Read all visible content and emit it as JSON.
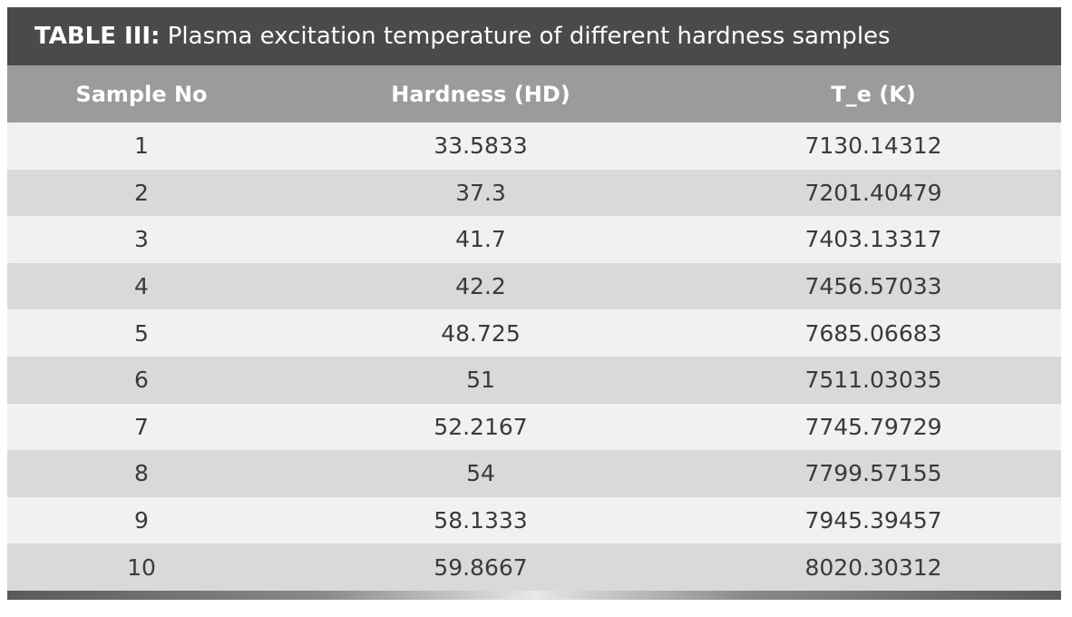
{
  "caption": {
    "label": "TABLE III:",
    "text": "Plasma excitation temperature of different hardness samples"
  },
  "headers": [
    "Sample No",
    "Hardness (HD)",
    "T_e (K)"
  ],
  "rows": [
    [
      "1",
      "33.5833",
      "7130.14312"
    ],
    [
      "2",
      "37.3",
      "7201.40479"
    ],
    [
      "3",
      "41.7",
      "7403.13317"
    ],
    [
      "4",
      "42.2",
      "7456.57033"
    ],
    [
      "5",
      "48.725",
      "7685.06683"
    ],
    [
      "6",
      "51",
      "7511.03035"
    ],
    [
      "7",
      "52.2167",
      "7745.79729"
    ],
    [
      "8",
      "54",
      "7799.57155"
    ],
    [
      "9",
      "58.1333",
      "7945.39457"
    ],
    [
      "10",
      "59.8667",
      "8020.30312"
    ]
  ],
  "colors": {
    "caption_bg": "#4a4a4a",
    "header_bg": "#9b9b9b",
    "row_light": "#f1f1f1",
    "row_dark": "#d9d9d9"
  }
}
